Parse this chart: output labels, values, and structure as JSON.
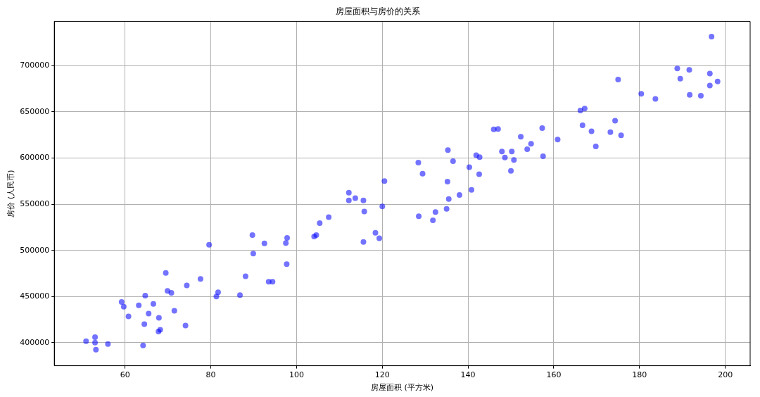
{
  "chart_data": {
    "type": "scatter",
    "title": "房屋面积与房价的关系",
    "xlabel": "房屋面积 (平方米)",
    "ylabel": "房价 (人民币)",
    "xlim": [
      43.5,
      205.8
    ],
    "ylim": [
      375000,
      748000
    ],
    "xticks": [
      60,
      80,
      100,
      120,
      140,
      160,
      180,
      200
    ],
    "yticks": [
      400000,
      450000,
      500000,
      550000,
      600000,
      650000,
      700000
    ],
    "grid": true,
    "marker": "circle",
    "series": [
      {
        "color": "#0000ff",
        "x": [
          50.9,
          53.0,
          53.0,
          53.2,
          56.0,
          59.2,
          59.7,
          60.8,
          63.2,
          64.7,
          64.5,
          64.2,
          65.5,
          66.6,
          67.9,
          67.8,
          68.2,
          69.5,
          69.9,
          70.8,
          71.5,
          74.1,
          74.4,
          77.6,
          79.6,
          81.3,
          81.7,
          86.8,
          88.1,
          89.7,
          89.9,
          92.5,
          93.5,
          94.4,
          97.5,
          97.8,
          97.7,
          104.1,
          104.6,
          105.4,
          107.5,
          112.2,
          112.2,
          113.7,
          115.6,
          115.8,
          115.6,
          118.4,
          119.3,
          120.0,
          120.5,
          128.4,
          128.5,
          129.4,
          131.8,
          132.4,
          135.0,
          135.3,
          135.2,
          135.5,
          136.5,
          138.0,
          140.3,
          140.8,
          141.9,
          142.7,
          142.6,
          146.0,
          147.0,
          147.9,
          148.6,
          150.0,
          150.2,
          150.7,
          152.3,
          153.8,
          154.7,
          157.3,
          157.5,
          160.9,
          166.2,
          167.2,
          166.7,
          168.8,
          169.8,
          173.2,
          174.3,
          175.0,
          175.7,
          180.4,
          183.7,
          188.8,
          189.5,
          191.6,
          191.7,
          194.3,
          196.4,
          196.4,
          196.8,
          198.2
        ],
        "values": [
          401500,
          406000,
          400000,
          392500,
          398500,
          444000,
          439000,
          428500,
          440500,
          451000,
          420000,
          397000,
          431500,
          442000,
          427000,
          412000,
          414000,
          475500,
          456000,
          454000,
          434500,
          418500,
          462000,
          469000,
          506000,
          450000,
          454500,
          451500,
          472000,
          516500,
          496500,
          507500,
          466000,
          466000,
          508000,
          513500,
          485000,
          515000,
          516500,
          529500,
          536000,
          562500,
          554000,
          556500,
          554000,
          542000,
          509000,
          519000,
          513000,
          547500,
          575000,
          595000,
          537000,
          583000,
          532500,
          541500,
          545000,
          608500,
          574500,
          555500,
          596500,
          560000,
          590000,
          565500,
          603000,
          601000,
          582500,
          631000,
          631500,
          607000,
          600500,
          586000,
          607000,
          598000,
          623000,
          609500,
          615500,
          632500,
          602000,
          620000,
          651500,
          653500,
          635500,
          629000,
          612500,
          628000,
          640500,
          685000,
          624500,
          669500,
          664000,
          697000,
          686000,
          695500,
          668500,
          667500,
          691500,
          678500,
          731500,
          683000
        ]
      }
    ]
  }
}
